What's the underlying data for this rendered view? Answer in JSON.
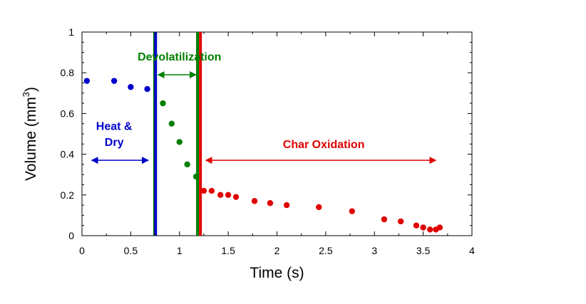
{
  "chart_data": {
    "type": "scatter",
    "title": "",
    "xlabel": "Time (s)",
    "ylabel": "Volume (mm",
    "ylabel_sup": "3",
    "ylabel_close": ")",
    "xlim": [
      0,
      4
    ],
    "ylim": [
      0,
      1
    ],
    "xticks": [
      0,
      0.5,
      1,
      1.5,
      2,
      2.5,
      3,
      3.5,
      4
    ],
    "xtick_labels": [
      "0",
      "0.5",
      "1",
      "1.5",
      "2",
      "2.5",
      "3",
      "3.5",
      "4"
    ],
    "yticks": [
      0,
      0.2,
      0.4,
      0.6,
      0.8,
      1
    ],
    "ytick_labels": [
      "0",
      "0.2",
      "0.4",
      "0.6",
      "0.8",
      "1"
    ],
    "grid": false,
    "legend": "none",
    "series": [
      {
        "color": "#0000CC",
        "x": [
          0.05,
          0.33,
          0.5,
          0.67
        ],
        "y": [
          0.76,
          0.76,
          0.73,
          0.72
        ]
      },
      {
        "color": "#008000",
        "x": [
          0.83,
          0.92,
          1.0,
          1.08,
          1.17
        ],
        "y": [
          0.65,
          0.55,
          0.46,
          0.35,
          0.29
        ]
      },
      {
        "color": "#E00000",
        "x": [
          1.25,
          1.33,
          1.42,
          1.5,
          1.58,
          1.77,
          1.93,
          2.1,
          2.43,
          2.77,
          3.1,
          3.27,
          3.43,
          3.5,
          3.57,
          3.63,
          3.67
        ],
        "y": [
          0.22,
          0.22,
          0.2,
          0.2,
          0.19,
          0.17,
          0.16,
          0.15,
          0.14,
          0.12,
          0.08,
          0.07,
          0.05,
          0.04,
          0.03,
          0.03,
          0.04
        ]
      }
    ],
    "vertical_lines": [
      {
        "x": 0.745,
        "color": "#008000"
      },
      {
        "x": 0.755,
        "color": "#0000CC"
      },
      {
        "x": 1.185,
        "color": "#008000"
      },
      {
        "x": 1.215,
        "color": "#E00000"
      }
    ],
    "annotations": [
      {
        "text": "Heat &",
        "color": "#0000CC",
        "x": 0.33,
        "y": 0.52
      },
      {
        "text": "Dry",
        "color": "#0000CC",
        "x": 0.33,
        "y": 0.44
      },
      {
        "text": "Devolatilization",
        "color": "#008000",
        "x": 1.0,
        "y": 0.86
      },
      {
        "text": "Char Oxidation",
        "color": "#E00000",
        "x": 2.48,
        "y": 0.43
      }
    ],
    "arrows": [
      {
        "color": "#0000CC",
        "x1": 0.1,
        "x2": 0.68,
        "y": 0.37
      },
      {
        "color": "#008000",
        "x1": 0.78,
        "x2": 1.17,
        "y": 0.79
      },
      {
        "color": "#E00000",
        "x1": 1.27,
        "x2": 3.63,
        "y": 0.37
      }
    ]
  }
}
